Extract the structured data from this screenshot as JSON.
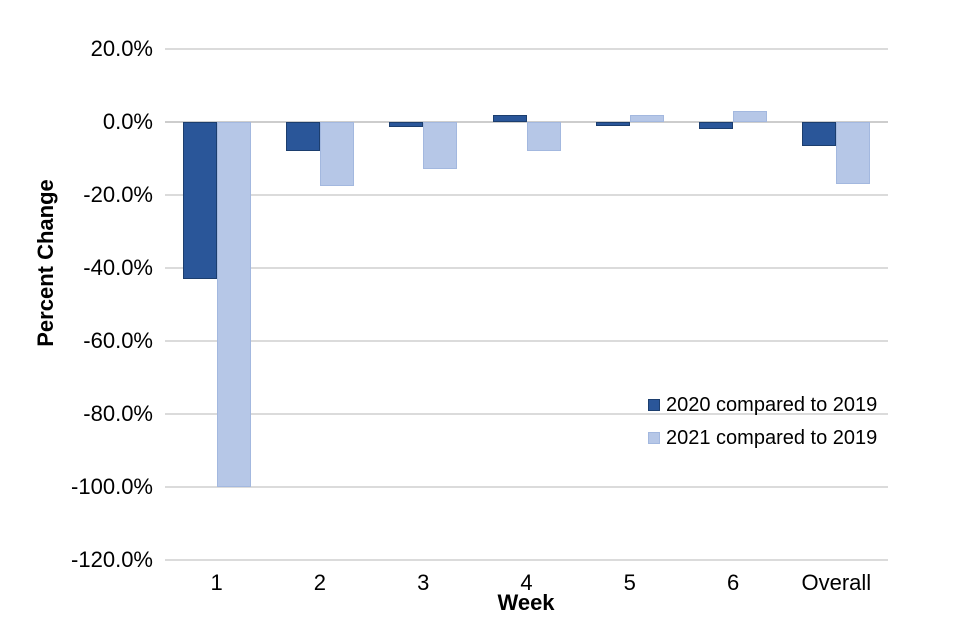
{
  "chart_data": {
    "type": "bar",
    "title": "",
    "xlabel": "Week",
    "ylabel": "Percent Change",
    "categories": [
      "1",
      "2",
      "3",
      "4",
      "5",
      "6",
      "Overall"
    ],
    "series": [
      {
        "id": "2020",
        "name": "2020 compared to 2019",
        "color": "#2A5699",
        "border_color": "#1C3E6E",
        "values": [
          -43,
          -8,
          -1.5,
          2,
          -1,
          -2,
          -6.5
        ]
      },
      {
        "id": "2021",
        "name": "2021 compared to 2019",
        "color": "#B6C7E7",
        "border_color": "#A3B8DF",
        "values": [
          -100,
          -17.5,
          -13,
          -8,
          2,
          3,
          -17
        ]
      }
    ],
    "ylim": [
      -120,
      20
    ],
    "ytick_step": 20,
    "yticks": [
      "20.0%",
      "0.0%",
      "-20.0%",
      "-40.0%",
      "-60.0%",
      "-80.0%",
      "-100.0%",
      "-120.0%"
    ],
    "grid": "horizontal",
    "gridline_color": "#DBDBDB",
    "zero_line_color": "#CDCDCD",
    "legend_position": "inside-right"
  }
}
